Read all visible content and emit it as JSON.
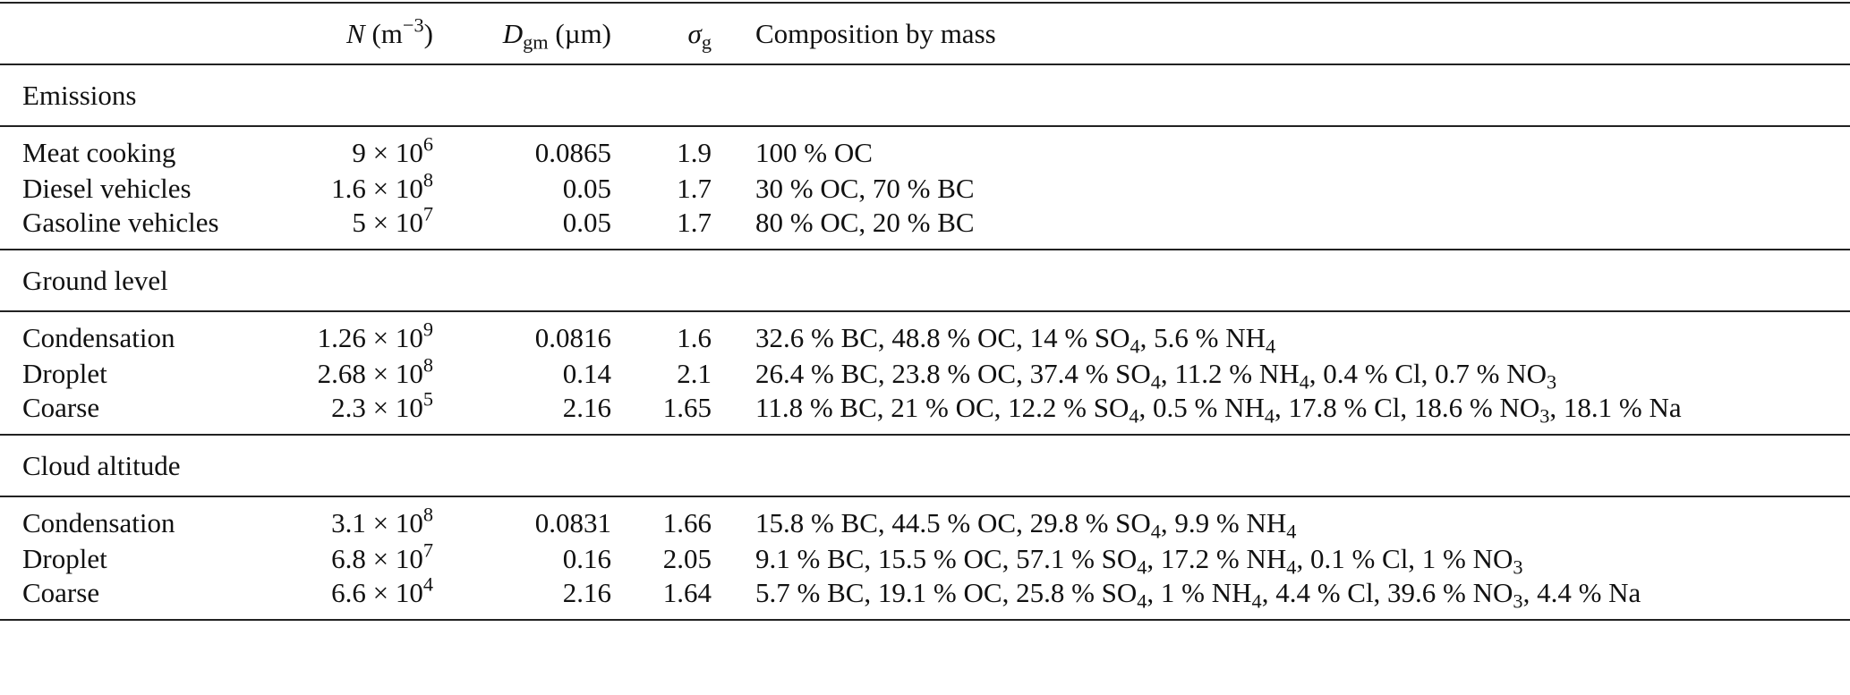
{
  "header": [
    "",
    [
      {
        "i": "N"
      },
      {
        "t": " (m"
      },
      {
        "sup": "−3"
      },
      {
        "t": ")"
      }
    ],
    [
      {
        "i": "D"
      },
      {
        "sub": "gm"
      },
      {
        "t": " (µm)"
      }
    ],
    [
      {
        "i": "σ"
      },
      {
        "sub": "g"
      }
    ],
    "Composition by mass"
  ],
  "sections": [
    {
      "title": "Emissions",
      "rows": [
        [
          "Meat cooking",
          [
            {
              "t": "9 × 10"
            },
            {
              "sup": "6"
            }
          ],
          "0.0865",
          "1.9",
          [
            {
              "t": "100 % OC"
            }
          ]
        ],
        [
          "Diesel vehicles",
          [
            {
              "t": "1.6 × 10"
            },
            {
              "sup": "8"
            }
          ],
          "0.05",
          "1.7",
          [
            {
              "t": "30 % OC, 70 % BC"
            }
          ]
        ],
        [
          "Gasoline vehicles",
          [
            {
              "t": "5 × 10"
            },
            {
              "sup": "7"
            }
          ],
          "0.05",
          "1.7",
          [
            {
              "t": "80 % OC, 20 % BC"
            }
          ]
        ]
      ]
    },
    {
      "title": "Ground level",
      "rows": [
        [
          "Condensation",
          [
            {
              "t": "1.26 × 10"
            },
            {
              "sup": "9"
            }
          ],
          "0.0816",
          "1.6",
          [
            {
              "t": "32.6 % BC, 48.8 % OC, 14 % SO"
            },
            {
              "sub": "4"
            },
            {
              "t": ", 5.6 % NH"
            },
            {
              "sub": "4"
            }
          ]
        ],
        [
          "Droplet",
          [
            {
              "t": "2.68 × 10"
            },
            {
              "sup": "8"
            }
          ],
          "0.14",
          "2.1",
          [
            {
              "t": "26.4 % BC, 23.8 % OC, 37.4 % SO"
            },
            {
              "sub": "4"
            },
            {
              "t": ", 11.2 % NH"
            },
            {
              "sub": "4"
            },
            {
              "t": ", 0.4 % Cl, 0.7 % NO"
            },
            {
              "sub": "3"
            }
          ]
        ],
        [
          "Coarse",
          [
            {
              "t": "2.3 × 10"
            },
            {
              "sup": "5"
            }
          ],
          "2.16",
          "1.65",
          [
            {
              "t": "11.8 % BC, 21 % OC, 12.2 % SO"
            },
            {
              "sub": "4"
            },
            {
              "t": ", 0.5 % NH"
            },
            {
              "sub": "4"
            },
            {
              "t": ", 17.8 % Cl, 18.6 % NO"
            },
            {
              "sub": "3"
            },
            {
              "t": ", 18.1 % Na"
            }
          ]
        ]
      ]
    },
    {
      "title": "Cloud altitude",
      "rows": [
        [
          "Condensation",
          [
            {
              "t": "3.1 × 10"
            },
            {
              "sup": "8"
            }
          ],
          "0.0831",
          "1.66",
          [
            {
              "t": "15.8 % BC, 44.5 % OC, 29.8 % SO"
            },
            {
              "sub": "4"
            },
            {
              "t": ", 9.9 % NH"
            },
            {
              "sub": "4"
            }
          ]
        ],
        [
          "Droplet",
          [
            {
              "t": "6.8 × 10"
            },
            {
              "sup": "7"
            }
          ],
          "0.16",
          "2.05",
          [
            {
              "t": "9.1 % BC, 15.5 % OC, 57.1 % SO"
            },
            {
              "sub": "4"
            },
            {
              "t": ", 17.2 % NH"
            },
            {
              "sub": "4"
            },
            {
              "t": ", 0.1 % Cl, 1 % NO"
            },
            {
              "sub": "3"
            }
          ]
        ],
        [
          "Coarse",
          [
            {
              "t": "6.6 × 10"
            },
            {
              "sup": "4"
            }
          ],
          "2.16",
          "1.64",
          [
            {
              "t": "5.7 % BC, 19.1 % OC, 25.8 % SO"
            },
            {
              "sub": "4"
            },
            {
              "t": ", 1 % NH"
            },
            {
              "sub": "4"
            },
            {
              "t": ", 4.4 % Cl, 39.6 % NO"
            },
            {
              "sub": "3"
            },
            {
              "t": ", 4.4 % Na"
            }
          ]
        ]
      ]
    }
  ]
}
